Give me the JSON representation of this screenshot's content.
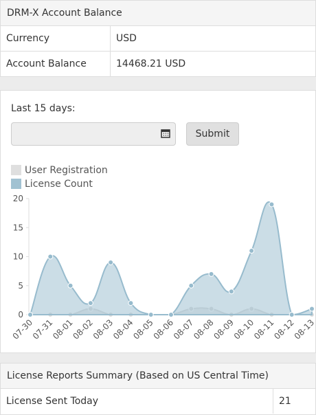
{
  "account_panel": {
    "title": "DRM-X Account Balance",
    "rows": [
      [
        "Currency",
        "USD"
      ],
      [
        "Account Balance",
        "14468.21 USD"
      ]
    ]
  },
  "filter": {
    "label": "Last 15 days:",
    "button": "Submit"
  },
  "chart_data": {
    "type": "line",
    "categories": [
      "07-30",
      "07-31",
      "08-01",
      "08-02",
      "08-03",
      "08-04",
      "08-05",
      "08-06",
      "08-07",
      "08-08",
      "08-09",
      "08-10",
      "08-11",
      "08-12",
      "08-13"
    ],
    "series": [
      {
        "name": "User Registration",
        "color": "#dcdcdc",
        "values": [
          0,
          0,
          0,
          1,
          0,
          0,
          0,
          0,
          1,
          1,
          0,
          1,
          0,
          0,
          0
        ]
      },
      {
        "name": "License Count",
        "color": "#97bbcd",
        "values": [
          0,
          10,
          5,
          2,
          9,
          2,
          0,
          0,
          5,
          7,
          4,
          11,
          19,
          0,
          1
        ]
      }
    ],
    "ylim": [
      0,
      20
    ],
    "yticks": [
      0,
      5,
      10,
      15,
      20
    ],
    "smooth": true,
    "fill": true
  },
  "summary_panel": {
    "title": "License Reports Summary (Based on US Central Time)",
    "rows": [
      [
        "License Sent Today",
        21
      ]
    ]
  }
}
